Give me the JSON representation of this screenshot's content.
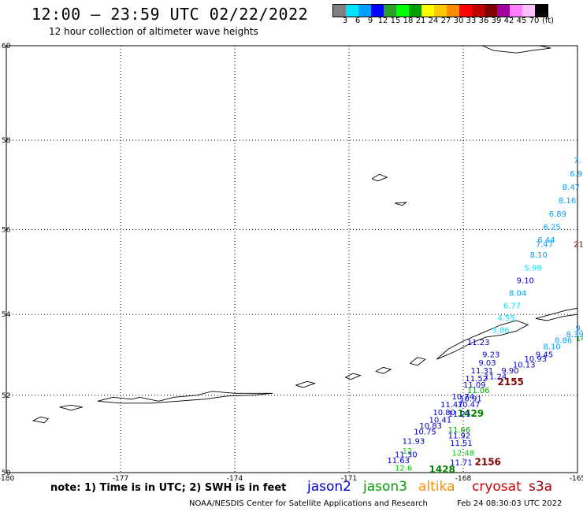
{
  "header": {
    "title": "12:00 – 23:59 UTC 02/22/2022",
    "subtitle": "12 hour collection of altimeter wave heights"
  },
  "color_scale": {
    "colors": [
      "#7f7f7f",
      "#00e5ff",
      "#00a0ff",
      "#0000ff",
      "#2aa02a",
      "#00ff00",
      "#00a000",
      "#ffff00",
      "#ffc800",
      "#ff8c00",
      "#ff0000",
      "#c00000",
      "#800000",
      "#a000a0",
      "#ff80ff",
      "#ffc0ff",
      "#000000"
    ],
    "labels": [
      "3",
      "6",
      "9",
      "12",
      "15",
      "18",
      "21",
      "24",
      "27",
      "30",
      "33",
      "36",
      "39",
      "42",
      "45",
      "70"
    ],
    "unit": "(ft)"
  },
  "chart_data": {
    "type": "scatter",
    "xlim": [
      -180,
      -165
    ],
    "ylim": [
      50,
      60
    ],
    "x_ticks": [
      "-180",
      "-177",
      "-174",
      "-171",
      "-168",
      "-165"
    ],
    "y_ticks": [
      "50",
      "52",
      "54",
      "56",
      "58",
      "60"
    ],
    "grid": true,
    "series": [
      {
        "name": "jason2",
        "color": "#0000cc",
        "points": []
      },
      {
        "name": "jason3",
        "color": "#00a000",
        "points": [
          {
            "lon": -167.9,
            "lat": 52.06,
            "label": "11.06",
            "color": "#00a000"
          },
          {
            "lon": -168.4,
            "lat": 51.05,
            "label": "11.66",
            "color": "#00a000"
          },
          {
            "lon": -169.6,
            "lat": 50.5,
            "label": "12",
            "color": "#00cc00"
          },
          {
            "lon": -168.3,
            "lat": 50.45,
            "label": "12.48",
            "color": "#00cc00"
          },
          {
            "lon": -169.8,
            "lat": 50.05,
            "label": "12.6",
            "color": "#00cc00"
          },
          {
            "lon": -165.05,
            "lat": 53.35,
            "label": "14",
            "color": "#00a000"
          },
          {
            "lon": -168.15,
            "lat": 51.45,
            "label": "1429",
            "color": "#008000"
          },
          {
            "lon": -168.9,
            "lat": 50.0,
            "label": "1428",
            "color": "#008000"
          }
        ]
      },
      {
        "name": "altika",
        "color": "#ff8c00",
        "points": []
      },
      {
        "name": "cryosat",
        "color": "#cc0000",
        "points": [
          {
            "lon": -167.1,
            "lat": 52.25,
            "label": "2155",
            "color": "#800000"
          },
          {
            "lon": -167.7,
            "lat": 50.2,
            "label": "2156",
            "color": "#800000"
          },
          {
            "lon": -165.1,
            "lat": 55.6,
            "label": "21",
            "color": "#800000"
          }
        ]
      },
      {
        "name": "s3a",
        "color": "#990000",
        "points": []
      },
      {
        "name": "track-east",
        "points": [
          {
            "lon": -165.1,
            "lat": 57.5,
            "label": "7.",
            "color": "#00a0ff"
          },
          {
            "lon": -165.2,
            "lat": 57.2,
            "label": "6.9",
            "color": "#00a0ff"
          },
          {
            "lon": -165.4,
            "lat": 56.9,
            "label": "8.47",
            "color": "#00a0ff"
          },
          {
            "lon": -165.5,
            "lat": 56.6,
            "label": "8.16",
            "color": "#00a0ff"
          },
          {
            "lon": -165.75,
            "lat": 56.3,
            "label": "6.89",
            "color": "#00a0ff"
          },
          {
            "lon": -165.9,
            "lat": 56.0,
            "label": "6.25",
            "color": "#00a0ff"
          },
          {
            "lon": -166.05,
            "lat": 55.7,
            "label": "6.44",
            "color": "#00a0ff"
          },
          {
            "lon": -166.1,
            "lat": 55.6,
            "label": "7.47",
            "color": "#00a0ff"
          },
          {
            "lon": -166.25,
            "lat": 55.35,
            "label": "8.10",
            "color": "#00a0ff"
          },
          {
            "lon": -166.4,
            "lat": 55.05,
            "label": "5.99",
            "color": "#00e5ff"
          },
          {
            "lon": -166.6,
            "lat": 54.75,
            "label": "9.10",
            "color": "#0000cc"
          },
          {
            "lon": -166.8,
            "lat": 54.45,
            "label": "8.04",
            "color": "#00a0ff"
          },
          {
            "lon": -166.95,
            "lat": 54.15,
            "label": "6.77",
            "color": "#00e5ff"
          },
          {
            "lon": -167.1,
            "lat": 53.85,
            "label": "4.55",
            "color": "#00e5ff"
          },
          {
            "lon": -167.25,
            "lat": 53.55,
            "label": "3.86",
            "color": "#00e5ff"
          }
        ]
      },
      {
        "name": "track-south",
        "points": [
          {
            "lon": -165.05,
            "lat": 53.6,
            "label": "9.23",
            "color": "#00a0ff"
          },
          {
            "lon": -165.3,
            "lat": 53.45,
            "label": "8.39",
            "color": "#00a0ff"
          },
          {
            "lon": -165.6,
            "lat": 53.3,
            "label": "8.86",
            "color": "#00a0ff"
          },
          {
            "lon": -165.9,
            "lat": 53.15,
            "label": "8.10",
            "color": "#00a0ff"
          },
          {
            "lon": -166.1,
            "lat": 52.95,
            "label": "9.45",
            "color": "#0000cc"
          },
          {
            "lon": -166.4,
            "lat": 52.85,
            "label": "10.93",
            "color": "#0000cc"
          },
          {
            "lon": -166.7,
            "lat": 52.7,
            "label": "10.13",
            "color": "#0000cc"
          },
          {
            "lon": -167.0,
            "lat": 52.55,
            "label": "9.90",
            "color": "#0000cc"
          },
          {
            "lon": -167.9,
            "lat": 53.25,
            "label": "11.23",
            "color": "#0000cc"
          },
          {
            "lon": -167.5,
            "lat": 52.95,
            "label": "9.23",
            "color": "#0000cc"
          },
          {
            "lon": -167.6,
            "lat": 52.75,
            "label": "9.03",
            "color": "#0000cc"
          },
          {
            "lon": -167.45,
            "lat": 52.4,
            "label": "11.24",
            "color": "#0000cc"
          },
          {
            "lon": -167.8,
            "lat": 52.55,
            "label": "11.31",
            "color": "#0000cc"
          },
          {
            "lon": -167.95,
            "lat": 52.35,
            "label": "11.52",
            "color": "#0000cc"
          },
          {
            "lon": -168.0,
            "lat": 52.2,
            "label": "11.09",
            "color": "#0000cc"
          },
          {
            "lon": -168.3,
            "lat": 51.9,
            "label": "10.74",
            "color": "#0000cc"
          },
          {
            "lon": -168.1,
            "lat": 51.85,
            "label": "10.91",
            "color": "#0000cc"
          },
          {
            "lon": -168.15,
            "lat": 51.7,
            "label": "10.47",
            "color": "#0000cc"
          },
          {
            "lon": -168.6,
            "lat": 51.7,
            "label": "11.47",
            "color": "#0000cc"
          },
          {
            "lon": -168.4,
            "lat": 51.45,
            "label": "11.21",
            "color": "#0000cc"
          },
          {
            "lon": -168.8,
            "lat": 51.5,
            "label": "10.80",
            "color": "#0000cc"
          },
          {
            "lon": -168.9,
            "lat": 51.3,
            "label": "10.41",
            "color": "#0000cc"
          },
          {
            "lon": -169.15,
            "lat": 51.15,
            "label": "10.83",
            "color": "#0000cc"
          },
          {
            "lon": -169.3,
            "lat": 51.0,
            "label": "10.75",
            "color": "#0000cc"
          },
          {
            "lon": -168.4,
            "lat": 50.9,
            "label": "11.92",
            "color": "#0000cc"
          },
          {
            "lon": -169.6,
            "lat": 50.75,
            "label": "11.93",
            "color": "#0000cc"
          },
          {
            "lon": -168.35,
            "lat": 50.7,
            "label": "11.51",
            "color": "#0000cc"
          },
          {
            "lon": -169.8,
            "lat": 50.4,
            "label": "11.30",
            "color": "#0000cc"
          },
          {
            "lon": -170.0,
            "lat": 50.25,
            "label": "11.63",
            "color": "#0000cc"
          },
          {
            "lon": -168.35,
            "lat": 50.2,
            "label": "11.71",
            "color": "#0000cc"
          }
        ]
      }
    ]
  },
  "footer": {
    "note": "note: 1) Time is in UTC; 2) SWH is in feet",
    "satellites": [
      {
        "name": "jason2",
        "color": "#0000cc"
      },
      {
        "name": "jason3",
        "color": "#00a000"
      },
      {
        "name": "altika",
        "color": "#ff8c00"
      },
      {
        "name": "cryosat",
        "color": "#cc0000"
      },
      {
        "name": "s3a",
        "color": "#990000"
      }
    ],
    "credit": "NOAA/NESDIS Center for Satellite Applications and Research",
    "date": "Feb 24 08:30:03 UTC 2022"
  }
}
